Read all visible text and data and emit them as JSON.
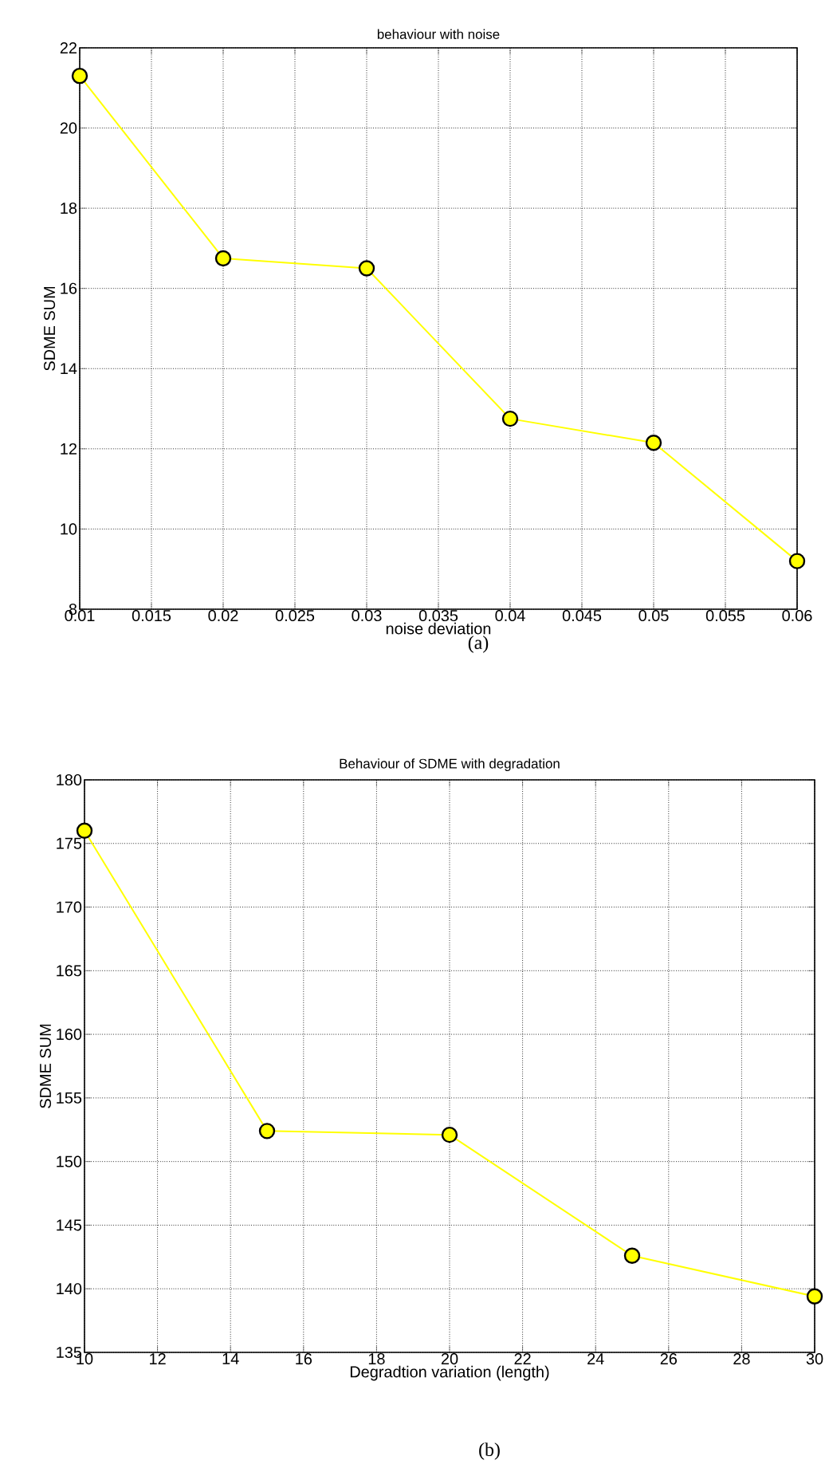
{
  "chart_data": [
    {
      "type": "line",
      "title": "behaviour with noise",
      "xlabel": "noise deviation",
      "ylabel": "SDME SUM",
      "annotations": [
        "(a)"
      ],
      "x": [
        0.01,
        0.02,
        0.03,
        0.04,
        0.05,
        0.06
      ],
      "series": [
        {
          "color": "#ffff00",
          "values": [
            21.3,
            16.75,
            16.5,
            12.75,
            12.15,
            9.2
          ]
        }
      ],
      "xlim": [
        0.01,
        0.06
      ],
      "ylim": [
        8,
        22
      ],
      "xticks": [
        0.01,
        0.015,
        0.02,
        0.025,
        0.03,
        0.035,
        0.04,
        0.045,
        0.05,
        0.055,
        0.06
      ],
      "yticks": [
        8,
        10,
        12,
        14,
        16,
        18,
        20,
        22
      ],
      "grid": true,
      "marker": "circle",
      "line_style": "solid"
    },
    {
      "type": "line",
      "title": "Behaviour of SDME with degradation",
      "xlabel": "Degradtion variation (length)",
      "ylabel": "SDME SUM",
      "annotations": [
        "(b)"
      ],
      "x": [
        10,
        15,
        20,
        25,
        30
      ],
      "series": [
        {
          "color": "#ffff00",
          "values": [
            176,
            152.4,
            152.1,
            142.6,
            139.4
          ]
        }
      ],
      "xlim": [
        10,
        30
      ],
      "ylim": [
        135,
        180
      ],
      "xticks": [
        10,
        12,
        14,
        16,
        18,
        20,
        22,
        24,
        26,
        28,
        30
      ],
      "yticks": [
        135,
        140,
        145,
        150,
        155,
        160,
        165,
        170,
        175,
        180
      ],
      "grid": true,
      "marker": "circle",
      "line_style": "solid"
    }
  ]
}
